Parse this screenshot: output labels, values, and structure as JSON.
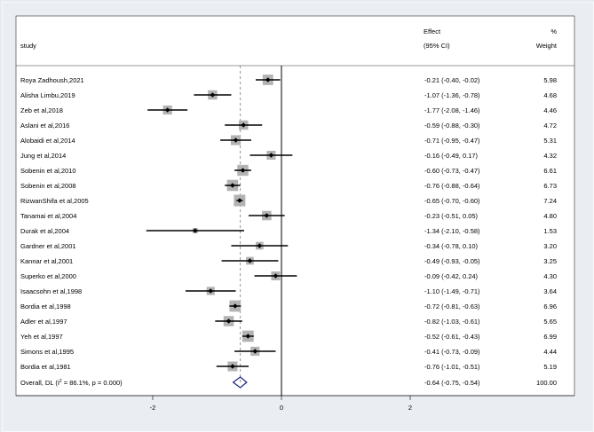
{
  "chart_data": {
    "type": "forest",
    "header": {
      "study_label": "study",
      "effect_label": "Effect",
      "ci_label": "(95% CI)",
      "pct_label": "%",
      "weight_label": "Weight"
    },
    "studies": [
      {
        "name": "Roya Zadhoush,2021",
        "effect": -0.21,
        "lo": -0.4,
        "hi": -0.02,
        "weight": 5.98,
        "ci_text": "-0.21 (-0.40, -0.02)",
        "weight_text": "5.98"
      },
      {
        "name": "Alisha Limbu,2019",
        "effect": -1.07,
        "lo": -1.36,
        "hi": -0.78,
        "weight": 4.68,
        "ci_text": "-1.07 (-1.36, -0.78)",
        "weight_text": "4.68"
      },
      {
        "name": "Zeb et al,2018",
        "effect": -1.77,
        "lo": -2.08,
        "hi": -1.46,
        "weight": 4.46,
        "ci_text": "-1.77 (-2.08, -1.46)",
        "weight_text": "4.46"
      },
      {
        "name": "Aslani et al,2016",
        "effect": -0.59,
        "lo": -0.88,
        "hi": -0.3,
        "weight": 4.72,
        "ci_text": "-0.59 (-0.88, -0.30)",
        "weight_text": "4.72"
      },
      {
        "name": "Alobaidi et al,2014",
        "effect": -0.71,
        "lo": -0.95,
        "hi": -0.47,
        "weight": 5.31,
        "ci_text": "-0.71 (-0.95, -0.47)",
        "weight_text": "5.31"
      },
      {
        "name": "Jung et al,2014",
        "effect": -0.16,
        "lo": -0.49,
        "hi": 0.17,
        "weight": 4.32,
        "ci_text": "-0.16 (-0.49, 0.17)",
        "weight_text": "4.32"
      },
      {
        "name": "Sobenin et al,2010",
        "effect": -0.6,
        "lo": -0.73,
        "hi": -0.47,
        "weight": 6.61,
        "ci_text": "-0.60 (-0.73, -0.47)",
        "weight_text": "6.61"
      },
      {
        "name": "Sobenin et al,2008",
        "effect": -0.76,
        "lo": -0.88,
        "hi": -0.64,
        "weight": 6.73,
        "ci_text": "-0.76 (-0.88, -0.64)",
        "weight_text": "6.73"
      },
      {
        "name": "RizwanShifa et al,2005",
        "effect": -0.65,
        "lo": -0.7,
        "hi": -0.6,
        "weight": 7.24,
        "ci_text": "-0.65 (-0.70, -0.60)",
        "weight_text": "7.24"
      },
      {
        "name": "Tanamai et al,2004",
        "effect": -0.23,
        "lo": -0.51,
        "hi": 0.05,
        "weight": 4.8,
        "ci_text": "-0.23 (-0.51, 0.05)",
        "weight_text": "4.80"
      },
      {
        "name": "Durak et al,2004",
        "effect": -1.34,
        "lo": -2.1,
        "hi": -0.58,
        "weight": 1.53,
        "ci_text": "-1.34 (-2.10, -0.58)",
        "weight_text": "1.53"
      },
      {
        "name": "Gardner et al,2001",
        "effect": -0.34,
        "lo": -0.78,
        "hi": 0.1,
        "weight": 3.2,
        "ci_text": "-0.34 (-0.78, 0.10)",
        "weight_text": "3.20"
      },
      {
        "name": "Kannar et al,2001",
        "effect": -0.49,
        "lo": -0.93,
        "hi": -0.05,
        "weight": 3.25,
        "ci_text": "-0.49 (-0.93, -0.05)",
        "weight_text": "3.25"
      },
      {
        "name": "Superko et al,2000",
        "effect": -0.09,
        "lo": -0.42,
        "hi": 0.24,
        "weight": 4.3,
        "ci_text": "-0.09 (-0.42, 0.24)",
        "weight_text": "4.30"
      },
      {
        "name": "Isaacsohn et al,1998",
        "effect": -1.1,
        "lo": -1.49,
        "hi": -0.71,
        "weight": 3.64,
        "ci_text": "-1.10 (-1.49, -0.71)",
        "weight_text": "3.64"
      },
      {
        "name": "Bordia et al,1998",
        "effect": -0.72,
        "lo": -0.81,
        "hi": -0.63,
        "weight": 6.96,
        "ci_text": "-0.72 (-0.81, -0.63)",
        "weight_text": "6.96"
      },
      {
        "name": "Adler et al,1997",
        "effect": -0.82,
        "lo": -1.03,
        "hi": -0.61,
        "weight": 5.65,
        "ci_text": "-0.82 (-1.03, -0.61)",
        "weight_text": "5.65"
      },
      {
        "name": "Yeh et al,1997",
        "effect": -0.52,
        "lo": -0.61,
        "hi": -0.43,
        "weight": 6.99,
        "ci_text": "-0.52 (-0.61, -0.43)",
        "weight_text": "6.99"
      },
      {
        "name": "Simons et al,1995",
        "effect": -0.41,
        "lo": -0.73,
        "hi": -0.09,
        "weight": 4.44,
        "ci_text": "-0.41 (-0.73, -0.09)",
        "weight_text": "4.44"
      },
      {
        "name": "Bordia et al,1981",
        "effect": -0.76,
        "lo": -1.01,
        "hi": -0.51,
        "weight": 5.19,
        "ci_text": "-0.76 (-1.01, -0.51)",
        "weight_text": "5.19"
      }
    ],
    "overall": {
      "name_prefix": "Overall, DL (I",
      "name_sup": "2",
      "name_suffix": " = 86.1%, p = 0.000)",
      "effect": -0.64,
      "lo": -0.75,
      "hi": -0.54,
      "weight": 100.0,
      "ci_text": "-0.64 (-0.75, -0.54)",
      "weight_text": "100.00"
    },
    "x_ticks": [
      {
        "value": -2,
        "label": "-2"
      },
      {
        "value": 0,
        "label": "0"
      },
      {
        "value": 2,
        "label": "2"
      }
    ],
    "null_line": 0,
    "xlim": [
      -2.6,
      2.6
    ],
    "colors": {
      "background": "#eaeef3",
      "plot_bg": "#ffffff",
      "box": "#b3b3b3",
      "line": "#000000",
      "dashed": "#888888",
      "diamond": "#1a237e"
    }
  }
}
